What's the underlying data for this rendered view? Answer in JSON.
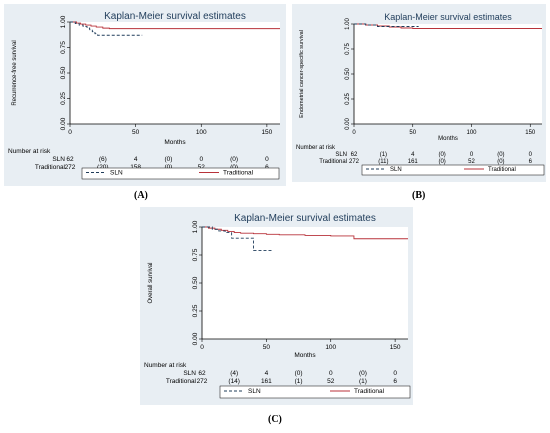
{
  "figure": {
    "captions": [
      "(A)",
      "(B)",
      "(C)"
    ]
  },
  "chart_data": [
    {
      "type": "line",
      "title": "Kaplan-Meier survival estimates",
      "xlabel": "Months",
      "ylabel": "Recurrence-free survival",
      "xlim": [
        0,
        160
      ],
      "ylim": [
        0,
        1
      ],
      "xticks": [
        "0",
        "50",
        "100",
        "150"
      ],
      "yticks": [
        "0.00",
        "0.25",
        "0.50",
        "0.75",
        "1.00"
      ],
      "xtick_values": [
        0,
        50,
        100,
        150
      ],
      "ytick_values": [
        0,
        0.25,
        0.5,
        0.75,
        1
      ],
      "grid": false,
      "series": [
        {
          "name": "SLN",
          "style": "dashed",
          "color": "#1f3c5a",
          "x": [
            0,
            4,
            7,
            10,
            13,
            15,
            17,
            19,
            21,
            24,
            55
          ],
          "y": [
            1.0,
            0.985,
            0.97,
            0.955,
            0.94,
            0.925,
            0.905,
            0.885,
            0.87,
            0.87,
            0.87
          ]
        },
        {
          "name": "Traditional",
          "style": "solid",
          "color": "#b8323a",
          "x": [
            0,
            5,
            8,
            12,
            16,
            20,
            25,
            30,
            160
          ],
          "y": [
            1.0,
            0.99,
            0.98,
            0.97,
            0.96,
            0.95,
            0.94,
            0.935,
            0.935
          ]
        }
      ],
      "risk_table": {
        "title": "Number at risk",
        "rows": [
          {
            "label": "SLN",
            "values": [
              "62",
              "(6)",
              "4",
              "(0)",
              "0",
              "(0)",
              "0"
            ]
          },
          {
            "label": "Traditional",
            "values": [
              "272",
              "(20)",
              "158",
              "(0)",
              "52",
              "(0)",
              "6"
            ]
          }
        ]
      },
      "legend": {
        "position": "bottom"
      }
    },
    {
      "type": "line",
      "title": "Kaplan-Meier survival estimates",
      "xlabel": "Months",
      "ylabel": "Endometrial cancer-specific survival",
      "xlim": [
        0,
        160
      ],
      "ylim": [
        0,
        1
      ],
      "xticks": [
        "0",
        "50",
        "100",
        "150"
      ],
      "yticks": [
        "0.00",
        "0.25",
        "0.50",
        "0.75",
        "1.00"
      ],
      "xtick_values": [
        0,
        50,
        100,
        150
      ],
      "ytick_values": [
        0,
        0.25,
        0.5,
        0.75,
        1
      ],
      "grid": false,
      "series": [
        {
          "name": "SLN",
          "style": "dashed",
          "color": "#1f3c5a",
          "x": [
            0,
            10,
            20,
            30,
            55
          ],
          "y": [
            1.0,
            0.99,
            0.975,
            0.975,
            0.975
          ]
        },
        {
          "name": "Traditional",
          "style": "solid",
          "color": "#b8323a",
          "x": [
            0,
            10,
            20,
            30,
            40,
            50,
            160
          ],
          "y": [
            1.0,
            0.99,
            0.98,
            0.97,
            0.96,
            0.955,
            0.955
          ]
        }
      ],
      "risk_table": {
        "title": "Number at risk",
        "rows": [
          {
            "label": "SLN",
            "values": [
              "62",
              "(1)",
              "4",
              "(0)",
              "0",
              "(0)",
              "0"
            ]
          },
          {
            "label": "Traditional",
            "values": [
              "272",
              "(11)",
              "161",
              "(0)",
              "52",
              "(0)",
              "6"
            ]
          }
        ]
      },
      "legend": {
        "position": "bottom"
      }
    },
    {
      "type": "line",
      "title": "Kaplan-Meier survival estimates",
      "xlabel": "Months",
      "ylabel": "Overall survival",
      "xlim": [
        0,
        160
      ],
      "ylim": [
        0,
        1
      ],
      "xticks": [
        "0",
        "50",
        "100",
        "150"
      ],
      "yticks": [
        "0.00",
        "0.25",
        "0.50",
        "0.75",
        "1.00"
      ],
      "xtick_values": [
        0,
        50,
        100,
        150
      ],
      "ytick_values": [
        0,
        0.25,
        0.5,
        0.75,
        1
      ],
      "grid": false,
      "series": [
        {
          "name": "SLN",
          "style": "dashed",
          "color": "#1f3c5a",
          "x": [
            0,
            8,
            13,
            18,
            23,
            36,
            40,
            55
          ],
          "y": [
            1.0,
            0.98,
            0.965,
            0.95,
            0.9,
            0.9,
            0.79,
            0.79
          ]
        },
        {
          "name": "Traditional",
          "style": "solid",
          "color": "#b8323a",
          "x": [
            0,
            5,
            10,
            15,
            20,
            25,
            30,
            40,
            50,
            60,
            80,
            100,
            118,
            160
          ],
          "y": [
            1.0,
            0.99,
            0.98,
            0.97,
            0.96,
            0.95,
            0.945,
            0.94,
            0.935,
            0.93,
            0.925,
            0.92,
            0.895,
            0.895
          ]
        }
      ],
      "risk_table": {
        "title": "Number at risk",
        "rows": [
          {
            "label": "SLN",
            "values": [
              "62",
              "(4)",
              "4",
              "(0)",
              "0",
              "(0)",
              "0"
            ]
          },
          {
            "label": "Traditional",
            "values": [
              "272",
              "(14)",
              "161",
              "(1)",
              "52",
              "(1)",
              "6"
            ]
          }
        ]
      },
      "legend": {
        "position": "bottom"
      }
    }
  ]
}
